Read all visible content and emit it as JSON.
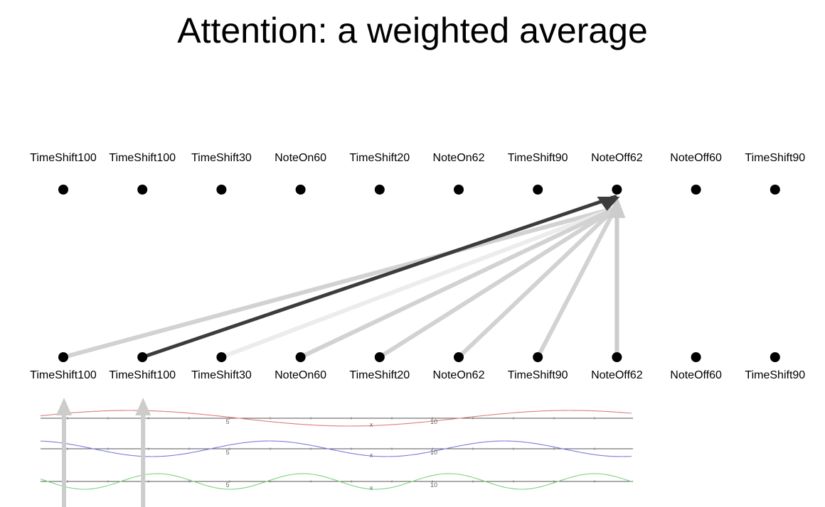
{
  "title": "Attention: a weighted average",
  "tokens_top": [
    "TimeShift100",
    "TimeShift100",
    "TimeShift30",
    "NoteOn60",
    "TimeShift20",
    "NoteOn62",
    "TimeShift90",
    "NoteOff62",
    "NoteOff60",
    "TimeShift90"
  ],
  "tokens_bottom": [
    "TimeShift100",
    "TimeShift100",
    "TimeShift30",
    "NoteOn60",
    "TimeShift20",
    "NoteOn62",
    "TimeShift90",
    "NoteOff62",
    "NoteOff60",
    "TimeShift90"
  ],
  "attention": {
    "target_index": 7,
    "edges": [
      {
        "from": 0,
        "shade": "#d2d2d2"
      },
      {
        "from": 1,
        "shade": "#3c3c3c"
      },
      {
        "from": 2,
        "shade": "#ececec"
      },
      {
        "from": 3,
        "shade": "#d2d2d2"
      },
      {
        "from": 4,
        "shade": "#d2d2d2"
      },
      {
        "from": 5,
        "shade": "#d2d2d2"
      },
      {
        "from": 6,
        "shade": "#d2d2d2"
      },
      {
        "from": 7,
        "shade": "#cccccc"
      }
    ]
  },
  "positional_encoding": {
    "tick_labels": [
      "5",
      "10"
    ],
    "axis_label": "x",
    "waves": [
      {
        "color": "#e07b7b"
      },
      {
        "color": "#7b7be0"
      },
      {
        "color": "#7bd47b"
      }
    ]
  },
  "colors": {
    "node": "#000000",
    "strong_arrow": "#3c3c3c",
    "weak_arrow": "#d2d2d2",
    "input_arrow": "#cccccc"
  }
}
